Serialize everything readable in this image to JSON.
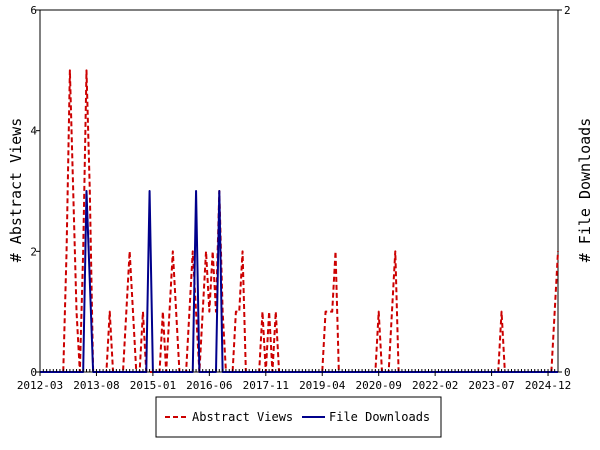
{
  "chart_data": {
    "type": "line",
    "title": "",
    "xlabel": "",
    "ylabel": "# Abstract Views",
    "y2label": "# File Downloads",
    "x_tick_labels": [
      "2012-03",
      "2013-08",
      "2015-01",
      "2016-06",
      "2017-11",
      "2019-04",
      "2020-09",
      "2022-02",
      "2023-07",
      "2024-12"
    ],
    "xlim": [
      "2012-03",
      "2025-03"
    ],
    "ylim": [
      0,
      6
    ],
    "y_ticks": [
      0,
      2,
      4,
      6
    ],
    "y2lim": [
      0,
      2
    ],
    "y2_ticks": [
      0,
      2
    ],
    "grid": false,
    "legend_position": "bottom-center",
    "series": [
      {
        "name": "Abstract Views",
        "axis": "left",
        "color": "#cc0000",
        "dash": "dashed",
        "points": [
          [
            "2012-10",
            0
          ],
          [
            "2012-11",
            2
          ],
          [
            "2012-12",
            5
          ],
          [
            "2013-01",
            3
          ],
          [
            "2013-02",
            1
          ],
          [
            "2013-03",
            0
          ],
          [
            "2013-04",
            2
          ],
          [
            "2013-05",
            5
          ],
          [
            "2013-06",
            3
          ],
          [
            "2013-07",
            0
          ],
          [
            "2013-11",
            0
          ],
          [
            "2013-12",
            1
          ],
          [
            "2014-01",
            0
          ],
          [
            "2014-04",
            0
          ],
          [
            "2014-05",
            1
          ],
          [
            "2014-06",
            2
          ],
          [
            "2014-07",
            1
          ],
          [
            "2014-08",
            0
          ],
          [
            "2014-09",
            0
          ],
          [
            "2014-10",
            1
          ],
          [
            "2014-11",
            0
          ],
          [
            "2015-03",
            0
          ],
          [
            "2015-04",
            1
          ],
          [
            "2015-05",
            0
          ],
          [
            "2015-06",
            1
          ],
          [
            "2015-07",
            2
          ],
          [
            "2015-08",
            1
          ],
          [
            "2015-09",
            0
          ],
          [
            "2015-11",
            0
          ],
          [
            "2015-12",
            1
          ],
          [
            "2016-01",
            2
          ],
          [
            "2016-02",
            1
          ],
          [
            "2016-03",
            0
          ],
          [
            "2016-04",
            1
          ],
          [
            "2016-05",
            2
          ],
          [
            "2016-06",
            1
          ],
          [
            "2016-07",
            2
          ],
          [
            "2016-08",
            1
          ],
          [
            "2016-09",
            3
          ],
          [
            "2016-10",
            1
          ],
          [
            "2016-11",
            0
          ],
          [
            "2017-01",
            0
          ],
          [
            "2017-02",
            1
          ],
          [
            "2017-03",
            1
          ],
          [
            "2017-04",
            2
          ],
          [
            "2017-05",
            0
          ],
          [
            "2017-09",
            0
          ],
          [
            "2017-10",
            1
          ],
          [
            "2017-11",
            0
          ],
          [
            "2017-12",
            1
          ],
          [
            "2018-01",
            0
          ],
          [
            "2018-02",
            1
          ],
          [
            "2018-03",
            0
          ],
          [
            "2019-04",
            0
          ],
          [
            "2019-05",
            1
          ],
          [
            "2019-06",
            1
          ],
          [
            "2019-07",
            1
          ],
          [
            "2019-08",
            2
          ],
          [
            "2019-09",
            0
          ],
          [
            "2020-08",
            0
          ],
          [
            "2020-09",
            1
          ],
          [
            "2020-10",
            0
          ],
          [
            "2020-12",
            0
          ],
          [
            "2021-01",
            1
          ],
          [
            "2021-02",
            2
          ],
          [
            "2021-03",
            0
          ],
          [
            "2023-09",
            0
          ],
          [
            "2023-10",
            1
          ],
          [
            "2023-11",
            0
          ],
          [
            "2025-01",
            0
          ],
          [
            "2025-02",
            1
          ],
          [
            "2025-03",
            2
          ]
        ]
      },
      {
        "name": "File Downloads",
        "axis": "right",
        "color": "#00008b",
        "dash": "solid",
        "points": [
          [
            "2013-04",
            0
          ],
          [
            "2013-05",
            1
          ],
          [
            "2013-06",
            0.5
          ],
          [
            "2013-07",
            0
          ],
          [
            "2014-11",
            0
          ],
          [
            "2014-12",
            1
          ],
          [
            "2015-01",
            0
          ],
          [
            "2016-01",
            0
          ],
          [
            "2016-02",
            1
          ],
          [
            "2016-03",
            0
          ],
          [
            "2016-08",
            0
          ],
          [
            "2016-09",
            1
          ],
          [
            "2016-10",
            0
          ]
        ]
      }
    ]
  }
}
